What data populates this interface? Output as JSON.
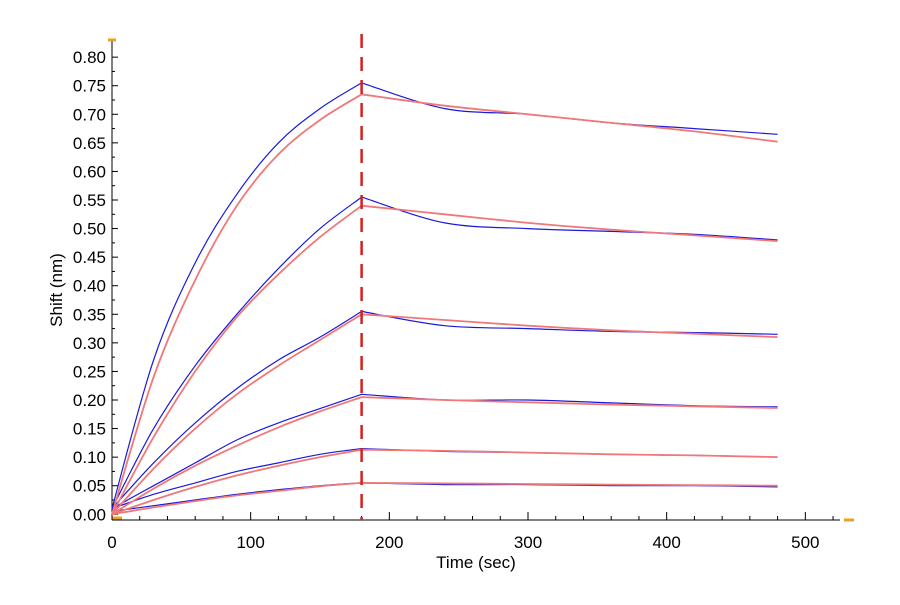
{
  "chart_data": {
    "type": "line",
    "title": "",
    "xlabel": "Time (sec)",
    "ylabel": "Shift (nm)",
    "xlim": [
      0,
      525
    ],
    "ylim": [
      -0.01,
      0.83
    ],
    "x_ticks": [
      0,
      100,
      200,
      300,
      400,
      500
    ],
    "x_tick_labels": [
      "0",
      "100",
      "200",
      "300",
      "400",
      "500"
    ],
    "y_ticks": [
      0,
      0.05,
      0.1,
      0.15,
      0.2,
      0.25,
      0.3,
      0.35,
      0.4,
      0.45,
      0.5,
      0.55,
      0.6,
      0.65,
      0.7,
      0.75,
      0.8
    ],
    "y_tick_labels": [
      "0.00",
      "0.05",
      "0.10",
      "0.15",
      "0.20",
      "0.25",
      "0.30",
      "0.35",
      "0.40",
      "0.45",
      "0.50",
      "0.55",
      "0.60",
      "0.65",
      "0.70",
      "0.75",
      "0.80"
    ],
    "association_end_x": 180,
    "grid": false,
    "colors": {
      "measured": "#1a1adb",
      "fit": "#f07878",
      "marker": "#d42020",
      "axis": "#000000",
      "corner_marks": "#f0a020"
    },
    "series": [
      {
        "name": "",
        "role": "measured",
        "x": [
          0,
          30,
          60,
          90,
          120,
          150,
          180,
          240,
          300,
          360,
          420,
          480
        ],
        "values": [
          0.01,
          0.27,
          0.44,
          0.56,
          0.65,
          0.71,
          0.755,
          0.71,
          0.7,
          0.685,
          0.675,
          0.665
        ]
      },
      {
        "name": "",
        "role": "fit",
        "x": [
          0,
          30,
          60,
          90,
          120,
          150,
          180,
          240,
          300,
          360,
          420,
          480
        ],
        "values": [
          0.0,
          0.24,
          0.41,
          0.54,
          0.63,
          0.69,
          0.735,
          0.715,
          0.7,
          0.685,
          0.67,
          0.652
        ]
      },
      {
        "name": "",
        "role": "measured",
        "x": [
          0,
          30,
          60,
          90,
          120,
          150,
          180,
          240,
          300,
          360,
          420,
          480
        ],
        "values": [
          0.01,
          0.15,
          0.26,
          0.35,
          0.43,
          0.5,
          0.555,
          0.51,
          0.5,
          0.495,
          0.49,
          0.48
        ]
      },
      {
        "name": "",
        "role": "fit",
        "x": [
          0,
          30,
          60,
          90,
          120,
          150,
          180,
          240,
          300,
          360,
          420,
          480
        ],
        "values": [
          0.0,
          0.135,
          0.25,
          0.345,
          0.42,
          0.485,
          0.54,
          0.525,
          0.51,
          0.498,
          0.488,
          0.478
        ]
      },
      {
        "name": "",
        "role": "measured",
        "x": [
          0,
          30,
          60,
          90,
          120,
          150,
          180,
          240,
          300,
          360,
          420,
          480
        ],
        "values": [
          0.01,
          0.09,
          0.16,
          0.22,
          0.27,
          0.31,
          0.355,
          0.33,
          0.325,
          0.32,
          0.318,
          0.315
        ]
      },
      {
        "name": "",
        "role": "fit",
        "x": [
          0,
          30,
          60,
          90,
          120,
          150,
          180,
          240,
          300,
          360,
          420,
          480
        ],
        "values": [
          0.0,
          0.08,
          0.15,
          0.21,
          0.26,
          0.305,
          0.35,
          0.34,
          0.33,
          0.322,
          0.316,
          0.31
        ]
      },
      {
        "name": "",
        "role": "measured",
        "x": [
          0,
          30,
          60,
          90,
          120,
          150,
          180,
          240,
          300,
          360,
          420,
          480
        ],
        "values": [
          0.01,
          0.05,
          0.09,
          0.13,
          0.16,
          0.185,
          0.21,
          0.2,
          0.2,
          0.195,
          0.19,
          0.188
        ]
      },
      {
        "name": "",
        "role": "fit",
        "x": [
          0,
          30,
          60,
          90,
          120,
          150,
          180,
          240,
          300,
          360,
          420,
          480
        ],
        "values": [
          0.0,
          0.045,
          0.085,
          0.12,
          0.152,
          0.18,
          0.205,
          0.2,
          0.196,
          0.192,
          0.189,
          0.186
        ]
      },
      {
        "name": "",
        "role": "measured",
        "x": [
          0,
          30,
          60,
          90,
          120,
          150,
          180,
          240,
          300,
          360,
          420,
          480
        ],
        "values": [
          0.01,
          0.035,
          0.055,
          0.075,
          0.09,
          0.105,
          0.115,
          0.11,
          0.108,
          0.105,
          0.103,
          0.1
        ]
      },
      {
        "name": "",
        "role": "fit",
        "x": [
          0,
          30,
          60,
          90,
          120,
          150,
          180,
          240,
          300,
          360,
          420,
          480
        ],
        "values": [
          0.0,
          0.025,
          0.048,
          0.068,
          0.085,
          0.1,
          0.113,
          0.111,
          0.108,
          0.105,
          0.103,
          0.1
        ]
      },
      {
        "name": "",
        "role": "measured",
        "x": [
          0,
          30,
          60,
          90,
          120,
          150,
          180,
          240,
          300,
          360,
          420,
          480
        ],
        "values": [
          0.005,
          0.015,
          0.025,
          0.035,
          0.043,
          0.05,
          0.055,
          0.052,
          0.052,
          0.05,
          0.05,
          0.048
        ]
      },
      {
        "name": "",
        "role": "fit",
        "x": [
          0,
          30,
          60,
          90,
          120,
          150,
          180,
          240,
          300,
          360,
          420,
          480
        ],
        "values": [
          0.0,
          0.012,
          0.023,
          0.033,
          0.041,
          0.049,
          0.055,
          0.054,
          0.053,
          0.052,
          0.051,
          0.05
        ]
      }
    ]
  }
}
